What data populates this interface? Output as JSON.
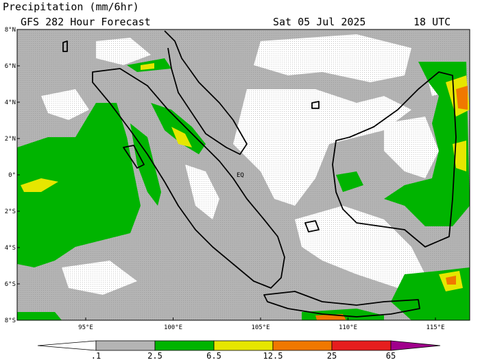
{
  "header": {
    "title": "Precipitation (mm/6hr)",
    "subtitle": "GFS 282 Hour Forecast",
    "date": "Sat 05 Jul 2025",
    "time": "18 UTC"
  },
  "map": {
    "lat_labels": [
      "8°N",
      "6°N",
      "4°N",
      "2°N",
      "0°",
      "2°S",
      "4°S",
      "6°S",
      "8°S"
    ],
    "lon_labels": [
      "95°E",
      "100°E",
      "105°E",
      "110°E",
      "115°E"
    ],
    "equator_label": "EQ"
  },
  "colorbar": {
    "labels": [
      ".1",
      "2.5",
      "6.5",
      "12.5",
      "25",
      "65"
    ],
    "colors": [
      "#b4b4b4",
      "#00b400",
      "#e6e600",
      "#f07800",
      "#e61e1e",
      "#a0008c"
    ]
  }
}
